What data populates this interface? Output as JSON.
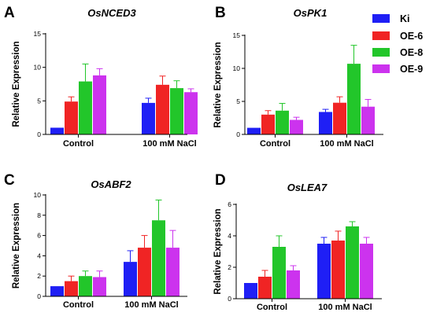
{
  "colors": {
    "Ki": "#1f1ff5",
    "OE-6": "#f02424",
    "OE-8": "#22c62a",
    "OE-9": "#cc33ee",
    "axis": "#000000"
  },
  "chart_data": [
    {
      "type": "bar",
      "panel": "A",
      "title": "OsNCED3",
      "ylabel": "Relative Expression",
      "xlabel": "",
      "categories": [
        "Control",
        "100 mM NaCl"
      ],
      "ylim": [
        0,
        15
      ],
      "yticks": [
        0,
        5,
        10,
        15
      ],
      "ytick_labels": [
        "0",
        "5",
        "10",
        "15"
      ],
      "series": [
        {
          "name": "Ki",
          "values": [
            1.0,
            4.7
          ],
          "errors": [
            0.0,
            0.7
          ]
        },
        {
          "name": "OE-6",
          "values": [
            4.9,
            7.4
          ],
          "errors": [
            0.7,
            1.3
          ]
        },
        {
          "name": "OE-8",
          "values": [
            7.9,
            6.9
          ],
          "errors": [
            2.6,
            1.1
          ]
        },
        {
          "name": "OE-9",
          "values": [
            8.8,
            6.3
          ],
          "errors": [
            1.0,
            0.5
          ]
        }
      ]
    },
    {
      "type": "bar",
      "panel": "B",
      "title": "OsPK1",
      "ylabel": "Relative Expression",
      "xlabel": "",
      "categories": [
        "Control",
        "100 mM NaCl"
      ],
      "ylim": [
        0,
        15
      ],
      "yticks": [
        0,
        5,
        10,
        15
      ],
      "ytick_labels": [
        "0",
        "5",
        "10",
        "15"
      ],
      "series": [
        {
          "name": "Ki",
          "values": [
            1.0,
            3.4
          ],
          "errors": [
            0.0,
            0.4
          ]
        },
        {
          "name": "OE-6",
          "values": [
            3.0,
            4.8
          ],
          "errors": [
            0.6,
            0.9
          ]
        },
        {
          "name": "OE-8",
          "values": [
            3.6,
            10.7
          ],
          "errors": [
            1.1,
            2.8
          ]
        },
        {
          "name": "OE-9",
          "values": [
            2.2,
            4.2
          ],
          "errors": [
            0.4,
            1.1
          ]
        }
      ]
    },
    {
      "type": "bar",
      "panel": "C",
      "title": "OsABF2",
      "ylabel": "Relative Expression",
      "xlabel": "",
      "categories": [
        "Control",
        "100 mM NaCl"
      ],
      "ylim": [
        0,
        10
      ],
      "yticks": [
        0,
        2,
        4,
        6,
        8,
        10
      ],
      "ytick_labels": [
        "0",
        "2",
        "4",
        "6",
        "8",
        "10"
      ],
      "series": [
        {
          "name": "Ki",
          "values": [
            1.0,
            3.4
          ],
          "errors": [
            0.0,
            1.1
          ]
        },
        {
          "name": "OE-6",
          "values": [
            1.5,
            4.8
          ],
          "errors": [
            0.5,
            1.2
          ]
        },
        {
          "name": "OE-8",
          "values": [
            2.0,
            7.5
          ],
          "errors": [
            0.5,
            2.0
          ]
        },
        {
          "name": "OE-9",
          "values": [
            1.9,
            4.8
          ],
          "errors": [
            0.6,
            1.7
          ]
        }
      ]
    },
    {
      "type": "bar",
      "panel": "D",
      "title": "OsLEA7",
      "ylabel": "Relative Expression",
      "xlabel": "",
      "categories": [
        "Control",
        "100 mM NaCl"
      ],
      "ylim": [
        0,
        6
      ],
      "yticks": [
        0,
        2,
        4,
        6
      ],
      "ytick_labels": [
        "0",
        "2",
        "4",
        "6"
      ],
      "series": [
        {
          "name": "Ki",
          "values": [
            1.0,
            3.5
          ],
          "errors": [
            0.0,
            0.4
          ]
        },
        {
          "name": "OE-6",
          "values": [
            1.4,
            3.7
          ],
          "errors": [
            0.4,
            0.6
          ]
        },
        {
          "name": "OE-8",
          "values": [
            3.3,
            4.6
          ],
          "errors": [
            0.7,
            0.3
          ]
        },
        {
          "name": "OE-9",
          "values": [
            1.8,
            3.5
          ],
          "errors": [
            0.3,
            0.4
          ]
        }
      ]
    }
  ],
  "legend": {
    "position": "top-right",
    "items": [
      "Ki",
      "OE-6",
      "OE-8",
      "OE-9"
    ]
  }
}
